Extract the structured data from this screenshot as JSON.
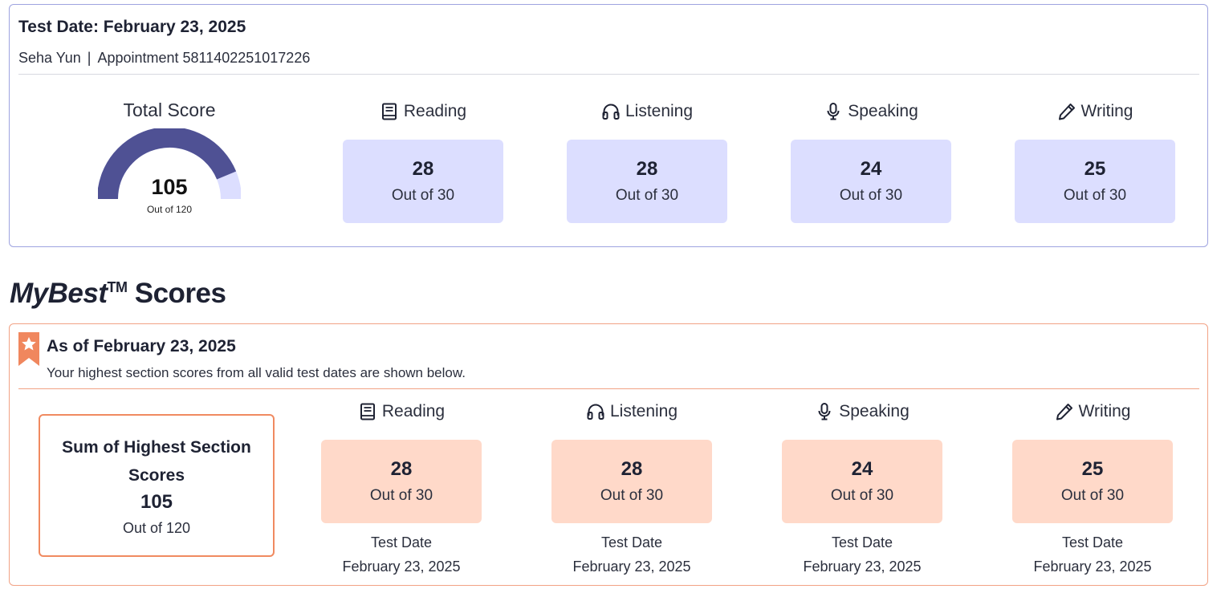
{
  "test": {
    "title": "Test Date: February 23, 2025",
    "name": "Seha Yun",
    "separator": "|",
    "appointment": "Appointment 5811402251017226"
  },
  "total": {
    "title": "Total Score",
    "score": "105",
    "out_of": "Out of 120",
    "fraction": 0.875,
    "color_fill": "#4f5194",
    "color_track": "#dcdeff"
  },
  "sections": [
    {
      "label": "Reading",
      "icon": "book-icon",
      "score": "28",
      "out_of": "Out of 30"
    },
    {
      "label": "Listening",
      "icon": "headphones-icon",
      "score": "28",
      "out_of": "Out of 30"
    },
    {
      "label": "Speaking",
      "icon": "microphone-icon",
      "score": "24",
      "out_of": "Out of 30"
    },
    {
      "label": "Writing",
      "icon": "pencil-icon",
      "score": "25",
      "out_of": "Out of 30"
    }
  ],
  "mybest": {
    "heading_brand": "MyBest",
    "heading_tm": "TM",
    "heading_rest": "Scores",
    "ribbon_icon": "star-ribbon-icon",
    "as_of": "As of February 23, 2025",
    "description": "Your highest section scores from all valid test dates are shown below.",
    "sum_title": "Sum of Highest Section Scores",
    "sum_score": "105",
    "sum_out_of": "Out of 120",
    "sections": [
      {
        "label": "Reading",
        "icon": "book-icon",
        "score": "28",
        "out_of": "Out of 30",
        "date_label": "Test Date",
        "date": "February 23, 2025"
      },
      {
        "label": "Listening",
        "icon": "headphones-icon",
        "score": "28",
        "out_of": "Out of 30",
        "date_label": "Test Date",
        "date": "February 23, 2025"
      },
      {
        "label": "Speaking",
        "icon": "microphone-icon",
        "score": "24",
        "out_of": "Out of 30",
        "date_label": "Test Date",
        "date": "February 23, 2025"
      },
      {
        "label": "Writing",
        "icon": "pencil-icon",
        "score": "25",
        "out_of": "Out of 30",
        "date_label": "Test Date",
        "date": "February 23, 2025"
      }
    ]
  },
  "colors": {
    "blue_border": "#9ea3e0",
    "blue_box": "#dcdeff",
    "orange_border": "#f2a285",
    "peach_box": "#ffd9c9",
    "ribbon": "#f0875e"
  }
}
